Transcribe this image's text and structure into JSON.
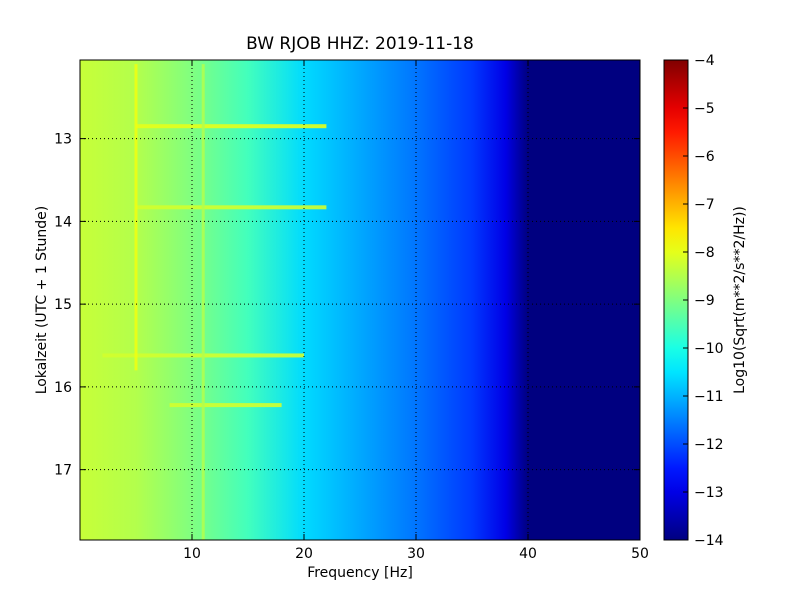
{
  "chart_data": {
    "type": "heatmap",
    "title": "BW RJOB HHZ: 2019-11-18",
    "xlabel": "Frequency [Hz]",
    "ylabel": "Lokalzeit (UTC + 1 Stunde)",
    "xlim": [
      0,
      50
    ],
    "ylim": [
      12.05,
      17.85
    ],
    "y_inverted": true,
    "x_ticks": [
      10,
      20,
      30,
      40,
      50
    ],
    "y_ticks": [
      13,
      14,
      15,
      16,
      17
    ],
    "grid": true,
    "colormap": "jet",
    "colorbar": {
      "label": "Log10(Sqrt(m**2/s**2/Hz))",
      "min": -14,
      "max": -4,
      "ticks": [
        -4,
        -5,
        -6,
        -7,
        -8,
        -9,
        -10,
        -11,
        -12,
        -13,
        -14
      ]
    },
    "value_profile_by_frequency": {
      "frequency_hz": [
        0,
        5,
        10,
        15,
        20,
        25,
        30,
        35,
        38,
        40,
        50
      ],
      "value": [
        -8.3,
        -8.5,
        -9.0,
        -9.6,
        -10.6,
        -11.1,
        -11.6,
        -12.2,
        -13.0,
        -14.0,
        -14.0
      ]
    },
    "horizontal_features": [
      {
        "time": 12.85,
        "fmin": 5,
        "fmax": 22,
        "value": -8.0
      },
      {
        "time": 13.83,
        "fmin": 5,
        "fmax": 22,
        "value": -8.2
      },
      {
        "time": 15.62,
        "fmin": 2,
        "fmax": 20,
        "value": -8.2
      },
      {
        "time": 16.22,
        "fmin": 8,
        "fmax": 18,
        "value": -8.2
      }
    ],
    "vertical_features": [
      {
        "frequency": 5,
        "tmin": 12.1,
        "tmax": 15.8,
        "value": -7.9
      },
      {
        "frequency": 11,
        "tmin": 12.1,
        "tmax": 17.85,
        "value": -8.5
      }
    ]
  }
}
